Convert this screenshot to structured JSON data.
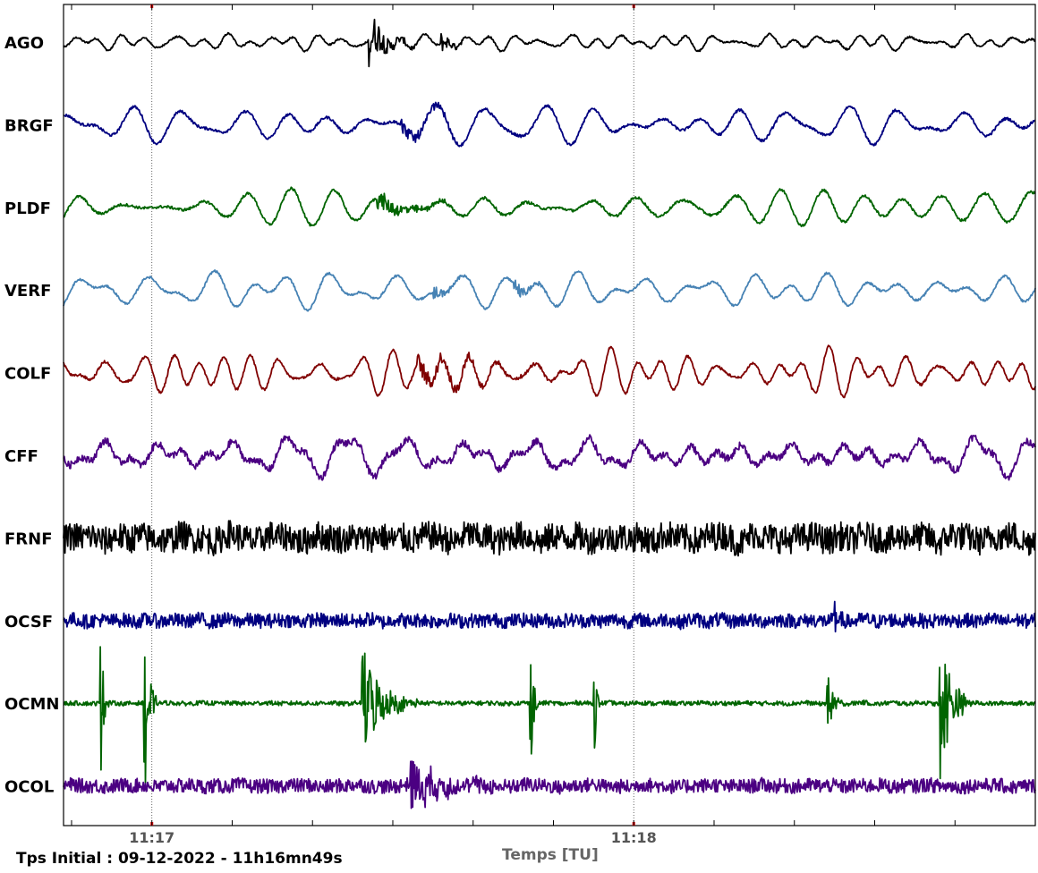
{
  "chart_data": {
    "type": "line",
    "title": "",
    "xlabel": "Temps [TU]",
    "ylabel": "",
    "initial_time_label": "Tps Initial : 09-12-2022 - 11h16mn49s",
    "x_ticks": [
      {
        "label": "11:17",
        "seconds": 11
      },
      {
        "label": "11:18",
        "seconds": 71
      }
    ],
    "x_range_seconds": [
      0,
      121
    ],
    "grid": "vertical dotted lines at labeled minute ticks",
    "series": [
      {
        "name": "AGO",
        "color": "#000000",
        "amplitude": 12,
        "noise": 1.0,
        "events": [
          {
            "t": 38,
            "dur": 6,
            "amp": 3.0
          },
          {
            "t": 47,
            "dur": 4,
            "amp": 1.2
          }
        ]
      },
      {
        "name": "BRGF",
        "color": "#000080",
        "amplitude": 26,
        "noise": 1.5,
        "events": [
          {
            "t": 42,
            "dur": 12,
            "amp": 0.9
          }
        ]
      },
      {
        "name": "PLDF",
        "color": "#006400",
        "amplitude": 30,
        "noise": 1.5,
        "events": [
          {
            "t": 39,
            "dur": 14,
            "amp": 1.1
          }
        ]
      },
      {
        "name": "VERF",
        "color": "#4682B4",
        "amplitude": 24,
        "noise": 1.2,
        "events": [
          {
            "t": 46,
            "dur": 5,
            "amp": 0.8
          },
          {
            "t": 56,
            "dur": 5,
            "amp": 1.0
          }
        ]
      },
      {
        "name": "COLF",
        "color": "#800000",
        "amplitude": 30,
        "noise": 1.5,
        "events": [
          {
            "t": 44,
            "dur": 18,
            "amp": 1.2
          }
        ]
      },
      {
        "name": "CFF",
        "color": "#4B0082",
        "amplitude": 26,
        "noise": 4.0,
        "events": []
      },
      {
        "name": "FRNF",
        "color": "#000000",
        "amplitude": 6,
        "noise": 16.0,
        "events": []
      },
      {
        "name": "OCSF",
        "color": "#000080",
        "amplitude": 2,
        "noise": 8.0,
        "events": [
          {
            "t": 96,
            "dur": 1.2,
            "amp": 2.5
          }
        ]
      },
      {
        "name": "OCMN",
        "color": "#006400",
        "amplitude": 1,
        "noise": 2.5,
        "events": [
          {
            "t": 4.5,
            "dur": 1.2,
            "amp": 12
          },
          {
            "t": 10,
            "dur": 1.5,
            "amp": 14
          },
          {
            "t": 37,
            "dur": 7,
            "amp": 7
          },
          {
            "t": 58,
            "dur": 1.2,
            "amp": 11
          },
          {
            "t": 66,
            "dur": 0.8,
            "amp": 8
          },
          {
            "t": 95,
            "dur": 2,
            "amp": 4
          },
          {
            "t": 109,
            "dur": 4,
            "amp": 10
          }
        ]
      },
      {
        "name": "OCOL",
        "color": "#4B0082",
        "amplitude": 2,
        "noise": 8.0,
        "events": [
          {
            "t": 43,
            "dur": 12,
            "amp": 3
          }
        ]
      }
    ]
  }
}
